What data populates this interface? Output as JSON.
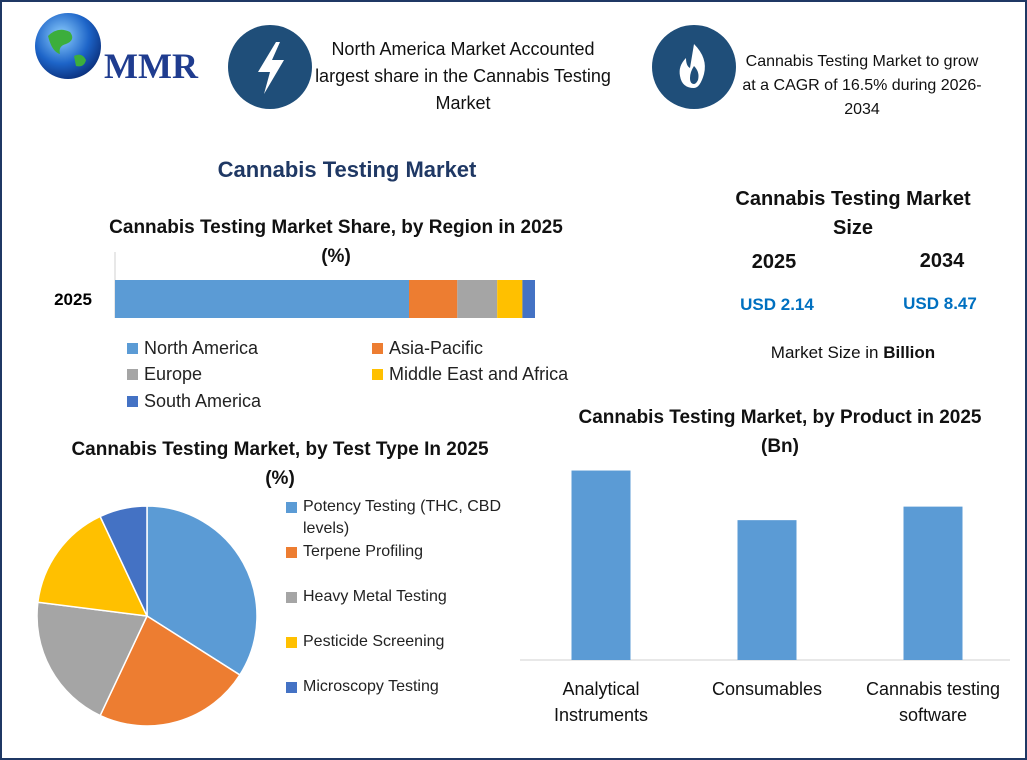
{
  "logo": "MMR",
  "highlights": [
    "North America Market Accounted largest share in the Cannabis Testing Market",
    "Cannabis Testing Market to grow at a CAGR of 16.5% during 2026-2034"
  ],
  "title": "Cannabis Testing Market",
  "market_size": {
    "title": "Cannabis Testing Market Size",
    "years": [
      "2025",
      "2034"
    ],
    "values": [
      "USD 2.14",
      "USD 8.47"
    ],
    "note": "Market Size in",
    "note_unit": "Billion"
  },
  "chart_data": [
    {
      "type": "bar",
      "orientation": "horizontal",
      "stacked": true,
      "title": "Cannabis Testing Market Share, by Region in 2025 (%)",
      "categories": [
        "2025"
      ],
      "xlim": [
        0,
        100
      ],
      "series": [
        {
          "name": "North America",
          "color": "#5b9bd5",
          "values": [
            70
          ]
        },
        {
          "name": "Asia-Pacific",
          "color": "#ed7d31",
          "values": [
            11.5
          ]
        },
        {
          "name": "Europe",
          "color": "#a5a5a5",
          "values": [
            9.5
          ]
        },
        {
          "name": "Middle East and Africa",
          "color": "#ffc000",
          "values": [
            6
          ]
        },
        {
          "name": "South America",
          "color": "#4472c4",
          "values": [
            3
          ]
        }
      ]
    },
    {
      "type": "pie",
      "title": "Cannabis Testing Market, by Test Type In 2025 (%)",
      "categories": [
        "Potency Testing (THC, CBD levels)",
        "Terpene Profiling",
        "Heavy Metal Testing",
        "Pesticide Screening",
        "Microscopy Testing"
      ],
      "values": [
        34,
        23,
        20,
        16,
        7
      ],
      "colors": [
        "#5b9bd5",
        "#ed7d31",
        "#a5a5a5",
        "#ffc000",
        "#4472c4"
      ]
    },
    {
      "type": "bar",
      "orientation": "vertical",
      "title": "Cannabis Testing Market, by Product in 2025 (Bn)",
      "categories": [
        "Analytical Instruments",
        "Consumables",
        "Cannabis testing software"
      ],
      "values": [
        0.84,
        0.62,
        0.68
      ],
      "color": "#5b9bd5",
      "ylim": [
        0,
        0.9
      ]
    }
  ]
}
